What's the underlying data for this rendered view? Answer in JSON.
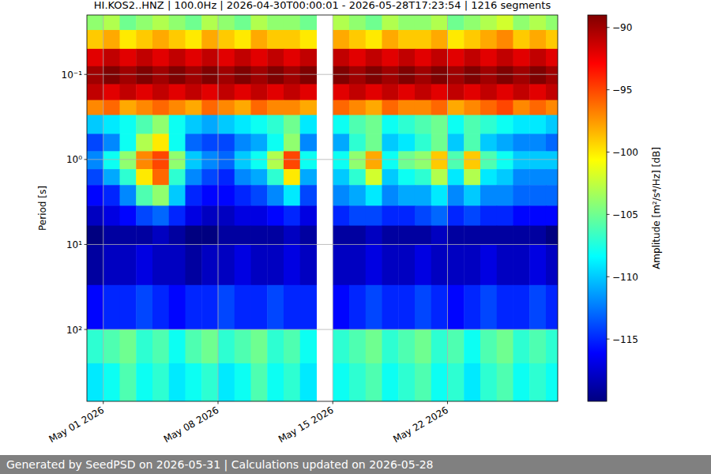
{
  "chart_data": {
    "type": "heatmap",
    "title": "HI.KOS2..HNZ | 100.0Hz | 2026-04-30T00:00:01 - 2026-05-28T17:23:54 | 1216 segments",
    "y_label": "Period [s]",
    "footer": "Generated by SeedPSD on 2026-05-31 | Calculations updated on 2026-05-28",
    "log": "y",
    "grid": true,
    "x": [
      "2026-04-30",
      "2026-05-01",
      "2026-05-02",
      "2026-05-03",
      "2026-05-04",
      "2026-05-05",
      "2026-05-06",
      "2026-05-07",
      "2026-05-08",
      "2026-05-09",
      "2026-05-10",
      "2026-05-11",
      "2026-05-12",
      "2026-05-13",
      "2026-05-14",
      "2026-05-15",
      "2026-05-16",
      "2026-05-17",
      "2026-05-18",
      "2026-05-19",
      "2026-05-20",
      "2026-05-21",
      "2026-05-22",
      "2026-05-23",
      "2026-05-24",
      "2026-05-25",
      "2026-05-26",
      "2026-05-27",
      "2026-05-28"
    ],
    "xlim": [
      "2026-04-30T00:00:01",
      "2026-05-28T17:23:54"
    ],
    "xticks": [
      {
        "value": "2026-05-01",
        "label": "May 01 2026"
      },
      {
        "value": "2026-05-08",
        "label": "May 08 2026"
      },
      {
        "value": "2026-05-15",
        "label": "May 15 2026"
      },
      {
        "value": "2026-05-22",
        "label": "May 22 2026"
      }
    ],
    "period_edges": [
      0.02,
      0.03,
      0.05,
      0.08,
      0.13,
      0.2,
      0.3,
      0.5,
      0.8,
      1.3,
      2,
      3.5,
      6,
      10,
      30,
      100,
      250,
      700
    ],
    "ylim": [
      700,
      0.02
    ],
    "yticks": [
      {
        "value": 0.1,
        "label": "10⁻¹"
      },
      {
        "value": 1,
        "label": "10⁰"
      },
      {
        "value": 10,
        "label": "10¹"
      },
      {
        "value": 100,
        "label": "10²"
      }
    ],
    "values": [
      [
        -104,
        -103,
        -105,
        -104,
        -103,
        -104,
        -105,
        -103,
        -104,
        -105,
        -103,
        -104,
        -104,
        -105,
        null,
        -103,
        -104,
        -105,
        -103,
        -104,
        -104,
        -103,
        -105,
        -104,
        -103,
        -102,
        -104,
        -103,
        -104
      ],
      [
        -99,
        -98,
        -100,
        -99,
        -98,
        -99,
        -100,
        -98,
        -99,
        -100,
        -98,
        -99,
        -99,
        -100,
        null,
        -98,
        -99,
        -100,
        -98,
        -99,
        -99,
        -98,
        -100,
        -99,
        -98,
        -97,
        -99,
        -98,
        -99
      ],
      [
        -92,
        -91,
        -92,
        -91,
        -92,
        -91,
        -92,
        -91,
        -92,
        -91,
        -92,
        -91,
        -92,
        -91,
        null,
        -91,
        -92,
        -91,
        -92,
        -91,
        -92,
        -91,
        -92,
        -91,
        -92,
        -91,
        -92,
        -91,
        -92
      ],
      [
        -90,
        -89,
        -90,
        -89,
        -90,
        -89,
        -90,
        -89,
        -90,
        -89,
        -90,
        -89,
        -90,
        -89,
        null,
        -89,
        -90,
        -89,
        -90,
        -89,
        -90,
        -89,
        -90,
        -89,
        -90,
        -89,
        -90,
        -89,
        -90
      ],
      [
        -91,
        -92,
        -91,
        -92,
        -91,
        -92,
        -91,
        -92,
        -91,
        -92,
        -91,
        -92,
        -91,
        -92,
        null,
        -92,
        -91,
        -92,
        -91,
        -92,
        -91,
        -92,
        -91,
        -92,
        -91,
        -92,
        -91,
        -92,
        -91
      ],
      [
        -97,
        -96,
        -98,
        -97,
        -96,
        -97,
        -98,
        -96,
        -97,
        -98,
        -96,
        -97,
        -97,
        -98,
        null,
        -96,
        -97,
        -98,
        -96,
        -97,
        -97,
        -96,
        -98,
        -97,
        -96,
        -95,
        -97,
        -96,
        -97
      ],
      [
        -110,
        -109,
        -108,
        -106,
        -104,
        -108,
        -110,
        -111,
        -110,
        -109,
        -108,
        -107,
        -105,
        -109,
        null,
        -108,
        -106,
        -105,
        -108,
        -107,
        -106,
        -105,
        -108,
        -106,
        -107,
        -108,
        -109,
        -109,
        -110
      ],
      [
        -114,
        -112,
        -108,
        -103,
        -100,
        -108,
        -113,
        -114,
        -114,
        -112,
        -111,
        -108,
        -104,
        -112,
        null,
        -111,
        -107,
        -105,
        -110,
        -109,
        -107,
        -105,
        -110,
        -106,
        -110,
        -111,
        -112,
        -112,
        -113
      ],
      [
        -112,
        -108,
        -104,
        -97,
        -95,
        -104,
        -110,
        -112,
        -113,
        -110,
        -108,
        -103,
        -95,
        -108,
        null,
        -108,
        -104,
        -98,
        -108,
        -105,
        -104,
        -99,
        -106,
        -99,
        -106,
        -108,
        -110,
        -110,
        -110
      ],
      [
        -114,
        -111,
        -107,
        -100,
        -96,
        -107,
        -112,
        -114,
        -115,
        -112,
        -111,
        -107,
        -100,
        -111,
        null,
        -110,
        -107,
        -102,
        -110,
        -108,
        -107,
        -103,
        -109,
        -103,
        -109,
        -110,
        -112,
        -112,
        -112
      ],
      [
        -116,
        -115,
        -112,
        -106,
        -104,
        -110,
        -115,
        -116,
        -116,
        -115,
        -114,
        -112,
        -109,
        -114,
        null,
        -112,
        -111,
        -109,
        -112,
        -111,
        -111,
        -109,
        -112,
        -110,
        -112,
        -112,
        -113,
        -113,
        -113
      ],
      [
        -118,
        -117,
        -116,
        -114,
        -113,
        -115,
        -117,
        -118,
        -118,
        -117,
        -117,
        -116,
        -115,
        -117,
        null,
        -115,
        -114,
        -114,
        -115,
        -115,
        -114,
        -113,
        -115,
        -114,
        -115,
        -115,
        -116,
        -116,
        -116
      ],
      [
        -120,
        -119,
        -119,
        -119,
        -118,
        -119,
        -120,
        -120,
        -119,
        -119,
        -119,
        -119,
        -118,
        -119,
        null,
        -119,
        -119,
        -118,
        -119,
        -119,
        -119,
        -118,
        -119,
        -119,
        -119,
        -119,
        -119,
        -119,
        -120
      ],
      [
        -119,
        -118,
        -118,
        -117,
        -118,
        -118,
        -119,
        -118,
        -118,
        -117,
        -118,
        -118,
        -117,
        -118,
        null,
        -118,
        -118,
        -117,
        -118,
        -118,
        -117,
        -118,
        -118,
        -118,
        -117,
        -118,
        -118,
        -117,
        -118
      ],
      [
        -116,
        -115,
        -115,
        -114,
        -115,
        -116,
        -115,
        -115,
        -114,
        -115,
        -115,
        -114,
        -115,
        -115,
        null,
        -116,
        -115,
        -114,
        -115,
        -115,
        -114,
        -115,
        -116,
        -115,
        -114,
        -115,
        -115,
        -114,
        -115
      ],
      [
        -107,
        -106,
        -105,
        -107,
        -106,
        -108,
        -106,
        -105,
        -107,
        -106,
        -105,
        -107,
        -106,
        -108,
        null,
        -107,
        -106,
        -105,
        -107,
        -106,
        -105,
        -107,
        -106,
        -108,
        -106,
        -105,
        -107,
        -106,
        -107
      ],
      [
        -109,
        -108,
        -106,
        -108,
        -107,
        -109,
        -108,
        -107,
        -109,
        -108,
        -106,
        -108,
        -107,
        -109,
        null,
        -108,
        -107,
        -106,
        -108,
        -107,
        -106,
        -108,
        -107,
        -109,
        -107,
        -106,
        -108,
        -107,
        -108
      ]
    ],
    "colorbar": {
      "label": "Amplitude [m²/s⁴/Hz] [dB]",
      "range": [
        -120,
        -89
      ],
      "ticks": [
        {
          "value": -90,
          "label": "−90"
        },
        {
          "value": -95,
          "label": "−95"
        },
        {
          "value": -100,
          "label": "−100"
        },
        {
          "value": -105,
          "label": "−105"
        },
        {
          "value": -110,
          "label": "−110"
        },
        {
          "value": -115,
          "label": "−115"
        }
      ]
    }
  }
}
